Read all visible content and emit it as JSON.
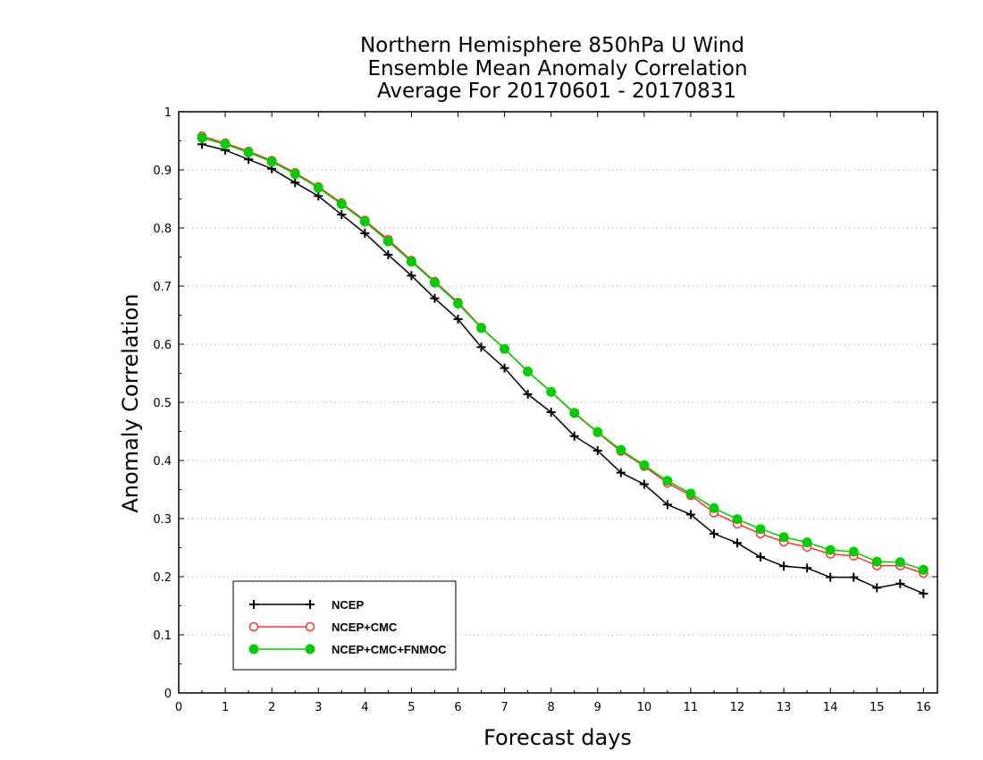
{
  "chart_data": {
    "type": "line",
    "title": [
      "Northern Hemisphere 850hPa U Wind",
      "Ensemble Mean Anomaly Correlation",
      "Average For 20170601 - 20170831"
    ],
    "xlabel": "Forecast days",
    "ylabel": "Anomaly Correlation",
    "xlim": [
      0,
      16.3
    ],
    "ylim": [
      0,
      1
    ],
    "xticks": [
      "0",
      "1",
      "2",
      "3",
      "4",
      "5",
      "6",
      "7",
      "8",
      "9",
      "10",
      "11",
      "12",
      "13",
      "14",
      "15",
      "16"
    ],
    "yticks": [
      "0",
      "0.1",
      "0.2",
      "0.3",
      "0.4",
      "0.5",
      "0.6",
      "0.7",
      "0.8",
      "0.9",
      "1"
    ],
    "grid": "horizontal dotted",
    "legend_position": "bottom-left",
    "x": [
      0.5,
      1,
      1.5,
      2,
      2.5,
      3,
      3.5,
      4,
      4.5,
      5,
      5.5,
      6,
      6.5,
      7,
      7.5,
      8,
      8.5,
      9,
      9.5,
      10,
      10.5,
      11,
      11.5,
      12,
      12.5,
      13,
      13.5,
      14,
      14.5,
      15,
      15.5,
      16
    ],
    "series": [
      {
        "name": "NCEP",
        "color": "#000000",
        "marker": "plus",
        "values": [
          0.944,
          0.934,
          0.918,
          0.902,
          0.878,
          0.855,
          0.823,
          0.791,
          0.754,
          0.718,
          0.679,
          0.643,
          0.595,
          0.559,
          0.514,
          0.483,
          0.442,
          0.417,
          0.379,
          0.359,
          0.324,
          0.307,
          0.274,
          0.258,
          0.234,
          0.218,
          0.215,
          0.199,
          0.199,
          0.181,
          0.188,
          0.171
        ]
      },
      {
        "name": "NCEP+CMC",
        "color": "#ff3333",
        "marker": "open-circle",
        "values": [
          0.958,
          0.946,
          0.932,
          0.916,
          0.895,
          0.871,
          0.843,
          0.813,
          0.78,
          0.744,
          0.708,
          0.672,
          0.629,
          0.592,
          0.553,
          0.518,
          0.481,
          0.448,
          0.416,
          0.39,
          0.361,
          0.34,
          0.31,
          0.291,
          0.274,
          0.26,
          0.251,
          0.239,
          0.236,
          0.219,
          0.219,
          0.206
        ]
      },
      {
        "name": "NCEP+CMC+FNMOC",
        "color": "#00cc00",
        "marker": "filled-circle",
        "values": [
          0.955,
          0.944,
          0.93,
          0.914,
          0.893,
          0.869,
          0.841,
          0.811,
          0.777,
          0.742,
          0.706,
          0.67,
          0.628,
          0.592,
          0.553,
          0.518,
          0.482,
          0.449,
          0.418,
          0.392,
          0.365,
          0.343,
          0.318,
          0.299,
          0.282,
          0.268,
          0.259,
          0.246,
          0.243,
          0.226,
          0.225,
          0.212
        ]
      }
    ]
  }
}
